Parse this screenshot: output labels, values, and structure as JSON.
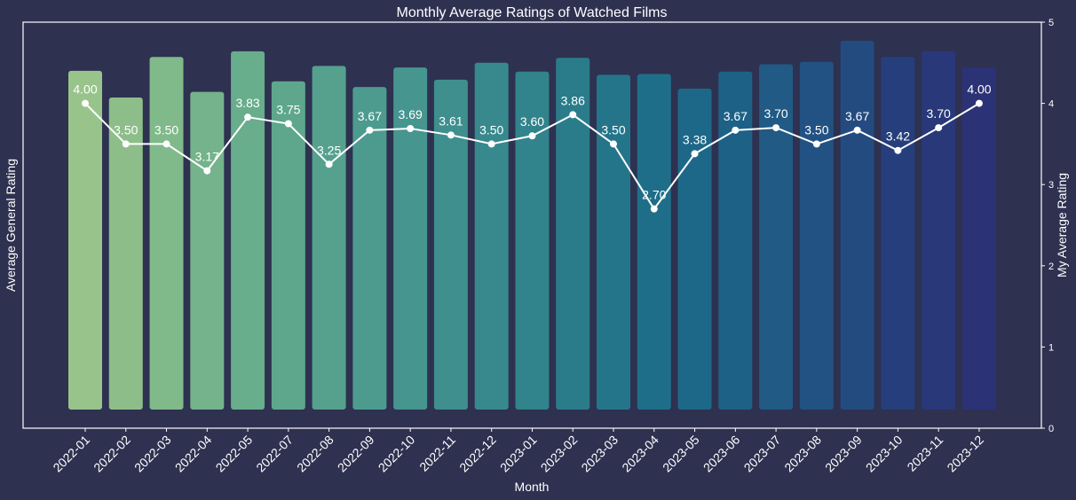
{
  "chart_data": {
    "type": "bar",
    "title": "Monthly Average Ratings of Watched Films",
    "xlabel": "Month",
    "ylabel_left": "Average General Rating",
    "ylabel_right": "My Average Rating",
    "categories": [
      "2022-01",
      "2022-02",
      "2022-03",
      "2022-04",
      "2022-05",
      "2022-07",
      "2022-08",
      "2022-09",
      "2022-10",
      "2022-11",
      "2022-12",
      "2023-01",
      "2023-02",
      "2023-03",
      "2023-04",
      "2023-05",
      "2023-06",
      "2023-07",
      "2023-08",
      "2023-09",
      "2023-10",
      "2023-11",
      "2023-12"
    ],
    "bar_series": {
      "values": [
        4.18,
        3.85,
        4.35,
        3.92,
        4.42,
        4.05,
        4.24,
        3.98,
        4.22,
        4.07,
        4.28,
        4.17,
        4.34,
        4.13,
        4.14,
        3.96,
        4.17,
        4.26,
        4.29,
        4.55,
        4.35,
        4.42,
        4.22
      ],
      "ylim": [
        0,
        5
      ],
      "axis_visible": false,
      "colors": [
        "#98c48b",
        "#8dbe8a",
        "#80b98a",
        "#74b38b",
        "#68ad8c",
        "#5ea78d",
        "#55a18e",
        "#4d9b8f",
        "#46958f",
        "#3e8f8e",
        "#37898d",
        "#31838c",
        "#2b7c8b",
        "#25758a",
        "#1f6e89",
        "#1d6888",
        "#1e6187",
        "#205a85",
        "#225283",
        "#244b80",
        "#263f7c",
        "#293879",
        "#2c3276"
      ]
    },
    "line_series": {
      "values": [
        4.0,
        3.5,
        3.5,
        3.17,
        3.83,
        3.75,
        3.25,
        3.67,
        3.69,
        3.61,
        3.5,
        3.6,
        3.86,
        3.5,
        2.7,
        3.38,
        3.67,
        3.7,
        3.5,
        3.67,
        3.42,
        3.7,
        4.0
      ],
      "labels": [
        "4.00",
        "3.50",
        "3.50",
        "3.17",
        "3.83",
        "3.75",
        "3.25",
        "3.67",
        "3.69",
        "3.61",
        "3.50",
        "3.60",
        "3.86",
        "3.50",
        "2.70",
        "3.38",
        "3.67",
        "3.70",
        "3.50",
        "3.67",
        "3.42",
        "3.70",
        "4.00"
      ],
      "color": "#ffffff"
    },
    "right_axis": {
      "ylim": [
        0,
        5
      ],
      "ticks": [
        "0",
        "1",
        "2",
        "3",
        "4",
        "5"
      ]
    },
    "grid": false,
    "colors": {
      "background": "#2e3150",
      "axes_frame": "#ffffff",
      "text": "#ffffff"
    }
  }
}
